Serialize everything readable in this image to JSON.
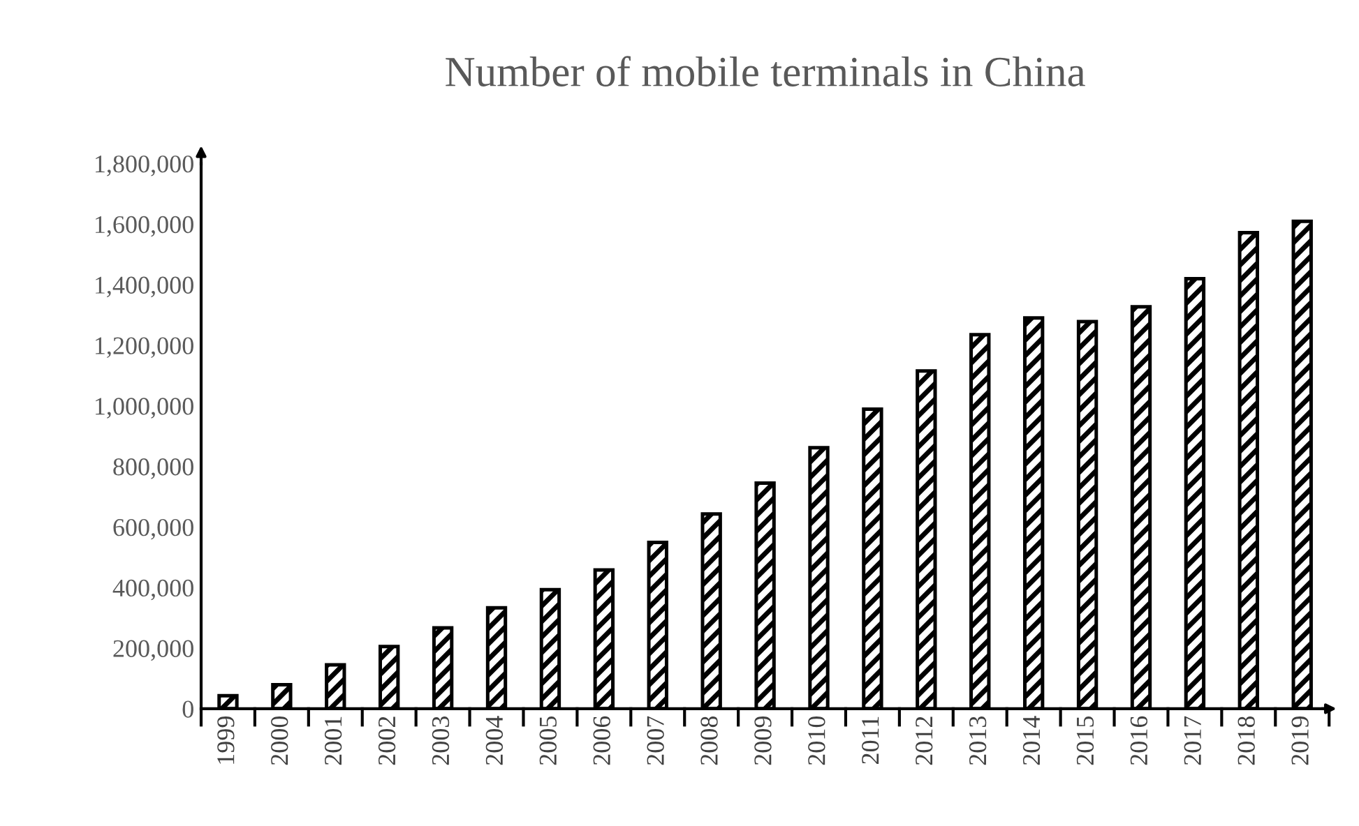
{
  "chart_data": {
    "type": "bar",
    "title": "Number of mobile terminals in China",
    "categories": [
      "1999",
      "2000",
      "2001",
      "2002",
      "2003",
      "2004",
      "2005",
      "2006",
      "2007",
      "2008",
      "2009",
      "2010",
      "2011",
      "2012",
      "2013",
      "2014",
      "2015",
      "2016",
      "2017",
      "2018",
      "2019"
    ],
    "values": [
      43000,
      79000,
      145000,
      205000,
      267000,
      333000,
      393000,
      458000,
      549000,
      643000,
      745000,
      862000,
      989000,
      1115000,
      1235000,
      1290000,
      1278000,
      1327000,
      1420000,
      1572000,
      1609000
    ],
    "color": "#000000",
    "ylim": [
      0,
      1800000
    ],
    "yticks": [
      {
        "value": 0,
        "label": "0"
      },
      {
        "value": 200000,
        "label": "200,000"
      },
      {
        "value": 400000,
        "label": "400,000"
      },
      {
        "value": 600000,
        "label": "600,000"
      },
      {
        "value": 800000,
        "label": "800,000"
      },
      {
        "value": 1000000,
        "label": "1,000,000"
      },
      {
        "value": 1200000,
        "label": "1,200,000"
      },
      {
        "value": 1400000,
        "label": "1,400,000"
      },
      {
        "value": 1600000,
        "label": "1,600,000"
      },
      {
        "value": 1800000,
        "label": "1,800,000"
      }
    ],
    "grid": false
  }
}
